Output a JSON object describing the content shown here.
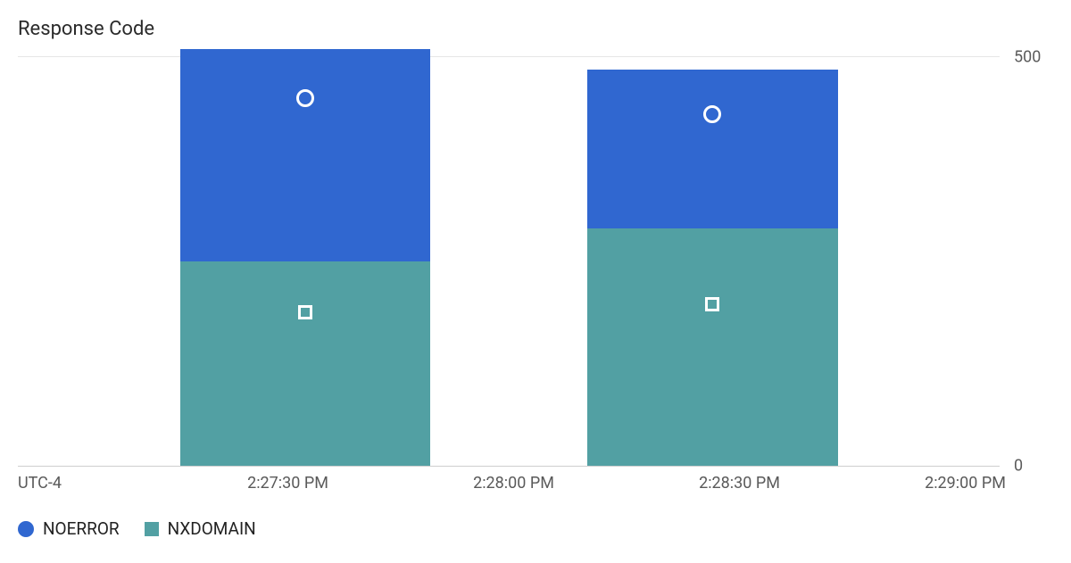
{
  "chart": {
    "type": "stacked-bar",
    "title": "Response Code",
    "background_color": "#ffffff",
    "grid_top_color": "#e6e6e6",
    "axis_line_color": "#cfcfcf",
    "text_color": "#5a5a5a",
    "title_fontsize": 22,
    "axis_fontsize": 18,
    "legend_fontsize": 19,
    "y": {
      "min": 0,
      "max": 500,
      "ticks": [
        {
          "value": 500,
          "label": "500"
        },
        {
          "value": 0,
          "label": "0"
        }
      ]
    },
    "x": {
      "timezone_label": "UTC-4",
      "ticks": [
        {
          "pos_pct": 27.5,
          "label": "2:27:30 PM"
        },
        {
          "pos_pct": 50.5,
          "label": "2:28:00 PM"
        },
        {
          "pos_pct": 73.5,
          "label": "2:28:30 PM"
        },
        {
          "pos_pct": 96.5,
          "label": "2:29:00 PM"
        }
      ]
    },
    "series": [
      {
        "key": "NOERROR",
        "label": "NOERROR",
        "color": "#3067d0",
        "marker": "circle"
      },
      {
        "key": "NXDOMAIN",
        "label": "NXDOMAIN",
        "color": "#52a0a3",
        "marker": "square"
      }
    ],
    "bars": [
      {
        "left_pct": 16.5,
        "width_pct": 25.5,
        "segments": {
          "NXDOMAIN": 250,
          "NOERROR": 260
        },
        "marker_positions": {
          "NOERROR_from_top_pct": 23,
          "NXDOMAIN_from_top_pct": 25
        }
      },
      {
        "left_pct": 58,
        "width_pct": 25.5,
        "segments": {
          "NXDOMAIN": 290,
          "NOERROR": 195
        },
        "marker_positions": {
          "NOERROR_from_top_pct": 28,
          "NXDOMAIN_from_top_pct": 32
        }
      }
    ]
  }
}
